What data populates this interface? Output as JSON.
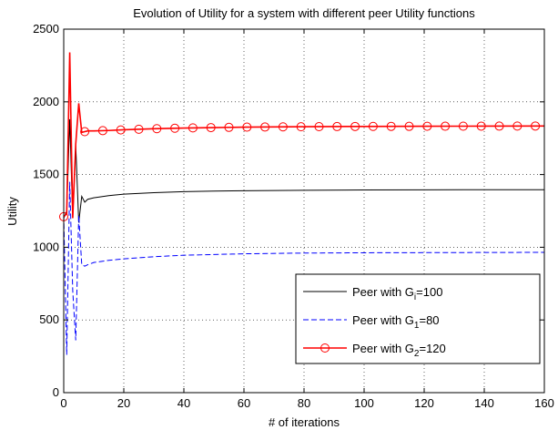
{
  "chart_data": {
    "type": "line",
    "title": "Evolution of Utility for a system with different peer Utility functions",
    "xlabel": "# of iterations",
    "ylabel": "Utility",
    "xlim": [
      0,
      160
    ],
    "ylim": [
      0,
      2500
    ],
    "x_ticks": [
      0,
      20,
      40,
      60,
      80,
      100,
      120,
      140,
      160
    ],
    "y_ticks": [
      0,
      500,
      1000,
      1500,
      2000,
      2500
    ],
    "grid": true,
    "legend_position": "lower-right",
    "series": [
      {
        "name_prefix": "Peer with G",
        "name_sub": "i",
        "name_suffix": "=100",
        "color": "#000000",
        "line_style": "solid",
        "marker": "none",
        "x": [
          0,
          1,
          2,
          3,
          4,
          5,
          6,
          7,
          8,
          10,
          15,
          20,
          30,
          40,
          50,
          60,
          80,
          100,
          120,
          140,
          160
        ],
        "values": [
          1200,
          1250,
          1880,
          1200,
          1700,
          1170,
          1350,
          1310,
          1330,
          1340,
          1355,
          1365,
          1375,
          1382,
          1386,
          1389,
          1392,
          1394,
          1395,
          1396,
          1396
        ]
      },
      {
        "name_prefix": "Peer with G",
        "name_sub": "1",
        "name_suffix": "=80",
        "color": "#0000ff",
        "line_style": "dashed",
        "marker": "none",
        "x": [
          0,
          1,
          2,
          3,
          4,
          5,
          6,
          7,
          8,
          10,
          15,
          20,
          30,
          40,
          50,
          60,
          80,
          100,
          120,
          140,
          160
        ],
        "values": [
          1220,
          260,
          1450,
          700,
          360,
          1220,
          880,
          870,
          880,
          895,
          910,
          920,
          935,
          945,
          950,
          955,
          960,
          962,
          963,
          964,
          965
        ]
      },
      {
        "name_prefix": "Peer with G",
        "name_sub": "2",
        "name_suffix": "=120",
        "color": "#ff0000",
        "line_style": "solid",
        "marker": "circle",
        "x": [
          0,
          1,
          2,
          3,
          4,
          5,
          6,
          7,
          8,
          10,
          15,
          20,
          30,
          40,
          50,
          60,
          80,
          100,
          120,
          140,
          160
        ],
        "values": [
          1210,
          1230,
          2340,
          1200,
          1710,
          1990,
          1790,
          1795,
          1800,
          1800,
          1803,
          1808,
          1815,
          1820,
          1823,
          1826,
          1829,
          1831,
          1832,
          1833,
          1834
        ],
        "marker_x": [
          0,
          7,
          13,
          19,
          25,
          31,
          37,
          43,
          49,
          55,
          61,
          67,
          73,
          79,
          85,
          91,
          97,
          103,
          109,
          115,
          121,
          127,
          133,
          139,
          145,
          151,
          157
        ]
      }
    ]
  }
}
